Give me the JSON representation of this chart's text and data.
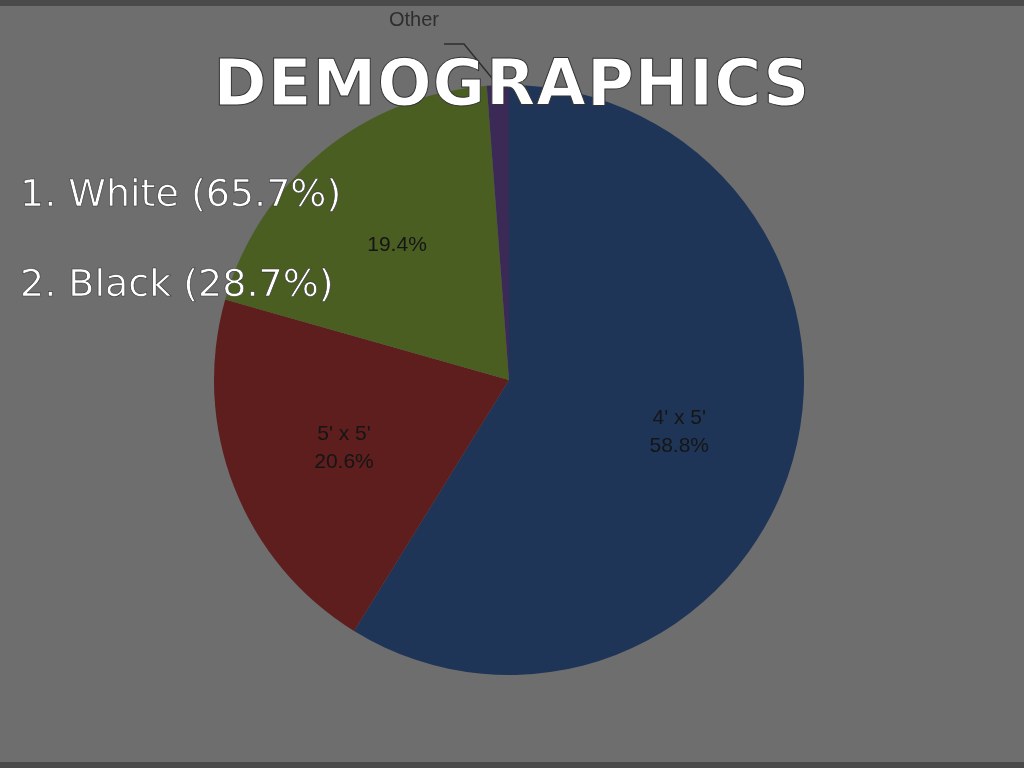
{
  "chart_data": {
    "type": "pie",
    "title": "DEMOGRAPHICS",
    "annotations": [
      "1. White (65.7%)",
      "2. Black (28.7%)"
    ],
    "categories": [
      "4' x 5'",
      "5' x 5'",
      null,
      "Other"
    ],
    "values": [
      58.8,
      20.6,
      19.4,
      1.2
    ],
    "value_labels": [
      "58.8%",
      "20.6%",
      "19.4%",
      null
    ],
    "colors": [
      "#1f3558",
      "#5e1e1e",
      "#4a5e22",
      "#3a2a55"
    ]
  }
}
